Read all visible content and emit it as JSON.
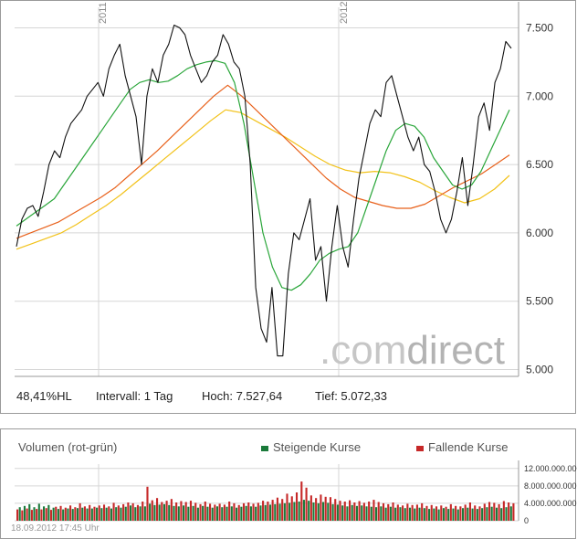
{
  "chart_data": [
    {
      "type": "line",
      "title": "",
      "x_year_labels": [
        "2011",
        "2012"
      ],
      "ylim": [
        4950,
        7650
      ],
      "yticks": [
        5000,
        5500,
        6000,
        6500,
        7000,
        7500
      ],
      "ytick_labels": [
        "5.000",
        "5.500",
        "6.000",
        "6.500",
        "7.000",
        "7.500"
      ],
      "grid": true,
      "series": [
        {
          "color": "#111111",
          "values": [
            5900,
            6100,
            6180,
            6200,
            6120,
            6300,
            6500,
            6600,
            6550,
            6700,
            6800,
            6850,
            6900,
            7000,
            7050,
            7100,
            7000,
            7200,
            7300,
            7380,
            7150,
            7000,
            6850,
            6500,
            7000,
            7200,
            7100,
            7300,
            7380,
            7520,
            7500,
            7450,
            7300,
            7200,
            7100,
            7150,
            7250,
            7300,
            7450,
            7380,
            7250,
            7200,
            7000,
            6500,
            5600,
            5300,
            5200,
            5600,
            5100,
            5100,
            5700,
            6000,
            5950,
            6100,
            6250,
            5800,
            5900,
            5500,
            5900,
            6200,
            5900,
            5750,
            6100,
            6400,
            6600,
            6800,
            6900,
            6850,
            7100,
            7150,
            7000,
            6850,
            6700,
            6600,
            6700,
            6500,
            6450,
            6300,
            6100,
            6000,
            6100,
            6300,
            6550,
            6200,
            6500,
            6850,
            6950,
            6750,
            7100,
            7200,
            7400,
            7350
          ]
        },
        {
          "color": "#2aa63a",
          "values": [
            6050,
            6100,
            6150,
            6200,
            6250,
            6350,
            6450,
            6550,
            6650,
            6750,
            6850,
            6950,
            7050,
            7100,
            7120,
            7100,
            7110,
            7150,
            7200,
            7230,
            7250,
            7260,
            7240,
            7100,
            6800,
            6400,
            6000,
            5750,
            5600,
            5580,
            5620,
            5700,
            5800,
            5850,
            5880,
            5900,
            6000,
            6200,
            6400,
            6600,
            6750,
            6800,
            6780,
            6700,
            6550,
            6450,
            6350,
            6320,
            6350,
            6450,
            6600,
            6750,
            6900
          ]
        },
        {
          "color": "#e8601a",
          "values": [
            5960,
            6000,
            6040,
            6080,
            6140,
            6200,
            6260,
            6330,
            6420,
            6510,
            6600,
            6700,
            6800,
            6900,
            7000,
            7080,
            7000,
            6900,
            6800,
            6700,
            6600,
            6500,
            6400,
            6320,
            6260,
            6230,
            6200,
            6180,
            6180,
            6210,
            6270,
            6330,
            6380,
            6430,
            6500,
            6570
          ]
        },
        {
          "color": "#f2c21a",
          "values": [
            5880,
            5920,
            5960,
            6000,
            6060,
            6130,
            6200,
            6280,
            6370,
            6460,
            6550,
            6640,
            6730,
            6820,
            6900,
            6880,
            6820,
            6760,
            6700,
            6630,
            6560,
            6500,
            6460,
            6440,
            6450,
            6440,
            6410,
            6370,
            6310,
            6260,
            6220,
            6250,
            6320,
            6420
          ]
        }
      ]
    },
    {
      "type": "bar",
      "title": "Volumen (rot-grün)",
      "ylim": [
        0,
        13000000000
      ],
      "yticks": [
        0,
        4000000000,
        8000000000,
        12000000000
      ],
      "ytick_labels": [
        "0",
        "4.000.000.000",
        "8.000.000.000",
        "12.000.000.000"
      ],
      "series": [
        {
          "name": "Steigende Kurse",
          "color": "#1a7a3a"
        },
        {
          "name": "Fallende Kurse",
          "color": "#c62828"
        }
      ],
      "values": [
        2600000000,
        3100000000,
        2400000000,
        3400000000,
        2800000000,
        3800000000,
        2500000000,
        3100000000,
        2700000000,
        3900000000,
        2600000000,
        3300000000,
        2900000000,
        3600000000,
        2500000000,
        3000000000,
        3200000000,
        2700000000,
        3400000000,
        2600000000,
        3000000000,
        2800000000,
        3500000000,
        2700000000,
        3100000000,
        2900000000,
        4000000000,
        3000000000,
        3300000000,
        2800000000,
        3600000000,
        2800000000,
        3200000000,
        3000000000,
        3500000000,
        2900000000,
        3700000000,
        3000000000,
        3300000000,
        2800000000,
        4100000000,
        3100000000,
        3500000000,
        3000000000,
        3800000000,
        3200000000,
        4200000000,
        3500000000,
        4000000000,
        3100000000,
        3600000000,
        3300000000,
        4400000000,
        3300000000,
        7800000000,
        3900000000,
        4700000000,
        3600000000,
        5200000000,
        3700000000,
        4300000000,
        3800000000,
        4600000000,
        3600000000,
        5000000000,
        3400000000,
        4200000000,
        3300000000,
        4500000000,
        3500000000,
        4300000000,
        3200000000,
        4600000000,
        3400000000,
        4100000000,
        3000000000,
        3800000000,
        3400000000,
        4400000000,
        3200000000,
        3900000000,
        3000000000,
        3700000000,
        3300000000,
        3900000000,
        3100000000,
        3700000000,
        3200000000,
        4400000000,
        3300000000,
        4000000000,
        3000000000,
        3600000000,
        3200000000,
        4000000000,
        3400000000,
        4200000000,
        3300000000,
        3900000000,
        3200000000,
        4100000000,
        3500000000,
        4600000000,
        3600000000,
        4400000000,
        3700000000,
        4800000000,
        3800000000,
        5300000000,
        3900000000,
        5000000000,
        4000000000,
        6200000000,
        4100000000,
        5600000000,
        4300000000,
        6500000000,
        4400000000,
        9000000000,
        4800000000,
        7600000000,
        4600000000,
        5800000000,
        4200000000,
        5200000000,
        4000000000,
        6000000000,
        4300000000,
        5500000000,
        4100000000,
        5400000000,
        3800000000,
        5000000000,
        3700000000,
        4600000000,
        3500000000,
        4400000000,
        3300000000,
        4700000000,
        3600000000,
        4200000000,
        3400000000,
        4500000000,
        3500000000,
        4100000000,
        3300000000,
        4400000000,
        3200000000,
        4800000000,
        3100000000,
        4300000000,
        3300000000,
        4000000000,
        3000000000,
        3800000000,
        3200000000,
        4200000000,
        3000000000,
        3700000000,
        3100000000,
        3500000000,
        2900000000,
        3900000000,
        3000000000,
        3600000000,
        2800000000,
        3700000000,
        3000000000,
        4000000000,
        2900000000,
        3400000000,
        2700000000,
        3600000000,
        2800000000,
        3300000000,
        2600000000,
        3500000000,
        2900000000,
        3200000000,
        2700000000,
        3800000000,
        2800000000,
        3400000000,
        2600000000,
        3300000000,
        2900000000,
        3700000000,
        3000000000,
        4200000000,
        2800000000,
        3500000000,
        2700000000,
        3300000000,
        2900000000,
        3900000000,
        3100000000,
        4300000000,
        3200000000,
        4100000000,
        3000000000,
        3800000000,
        2900000000,
        4500000000,
        3100000000,
        4200000000,
        3300000000,
        4000000000
      ]
    }
  ],
  "stats": {
    "hl": "48,41%HL",
    "interval": "Intervall: 1 Tag",
    "high": "Hoch:  7.527,64",
    "low": "Tief:  5.072,33"
  },
  "watermark": {
    "part1": ".com",
    "part2": "direct"
  },
  "timestamp": "18.09.2012 17:45 Uhr"
}
